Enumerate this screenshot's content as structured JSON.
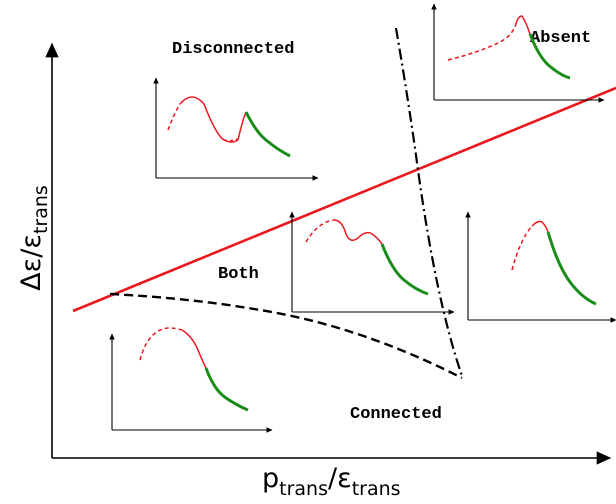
{
  "axes": {
    "x_label": {
      "main": "p",
      "sub": "trans",
      "slash": "/",
      "main2": "ε",
      "sub2": "trans"
    },
    "y_label": {
      "main": "Δε",
      "slash": "/",
      "main2": "ε",
      "sub2": "trans"
    }
  },
  "regions": {
    "disconnected": "Disconnected",
    "absent": "Absent",
    "both": "Both",
    "connected": "Connected"
  },
  "colors": {
    "boundary_solid": "#e8181e",
    "insert_red": "#e8181e",
    "insert_green": "#1a8c1a",
    "boundary_dashed": "#000000",
    "axes": "#000000"
  },
  "boundaries": [
    {
      "name": "red-solid-boundary",
      "style": "solid",
      "color": "red"
    },
    {
      "name": "black-dash-dot-boundary",
      "style": "dash-dot",
      "color": "black"
    },
    {
      "name": "black-dashed-boundary",
      "style": "dashed",
      "color": "black"
    }
  ]
}
